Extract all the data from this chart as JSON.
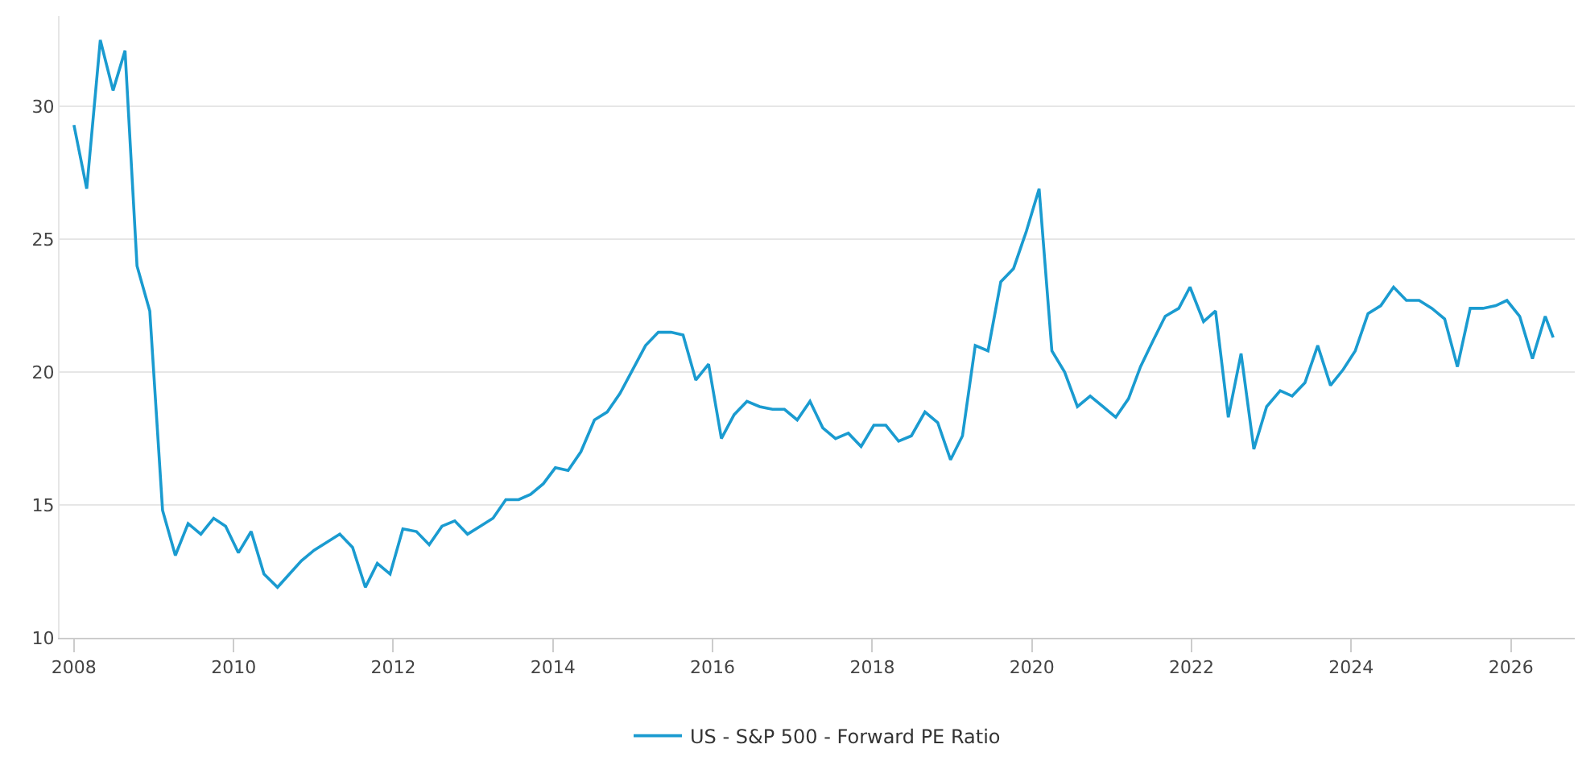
{
  "chart_data": {
    "type": "line",
    "x": [
      2008.0,
      2008.16,
      2008.33,
      2008.49,
      2008.64,
      2008.79,
      2008.95,
      2009.11,
      2009.27,
      2009.43,
      2009.59,
      2009.75,
      2009.9,
      2010.06,
      2010.22,
      2010.38,
      2010.55,
      2010.7,
      2010.85,
      2011.01,
      2011.17,
      2011.33,
      2011.49,
      2011.65,
      2011.8,
      2011.96,
      2012.12,
      2012.29,
      2012.45,
      2012.61,
      2012.77,
      2012.93,
      2013.09,
      2013.25,
      2013.41,
      2013.57,
      2013.72,
      2013.88,
      2014.03,
      2014.19,
      2014.35,
      2014.52,
      2014.68,
      2014.84,
      2015.0,
      2015.16,
      2015.32,
      2015.48,
      2015.63,
      2015.79,
      2015.95,
      2016.11,
      2016.27,
      2016.43,
      2016.59,
      2016.75,
      2016.9,
      2017.06,
      2017.22,
      2017.38,
      2017.54,
      2017.7,
      2017.86,
      2018.02,
      2018.17,
      2018.33,
      2018.49,
      2018.66,
      2018.82,
      2018.98,
      2019.13,
      2019.29,
      2019.45,
      2019.61,
      2019.77,
      2019.93,
      2020.09,
      2020.25,
      2020.41,
      2020.57,
      2020.73,
      2020.89,
      2021.05,
      2021.21,
      2021.36,
      2021.52,
      2021.67,
      2021.84,
      2021.98,
      2022.15,
      2022.3,
      2022.46,
      2022.62,
      2022.78,
      2022.94,
      2023.11,
      2023.26,
      2023.42,
      2023.58,
      2023.74,
      2023.9,
      2024.05,
      2024.21,
      2024.37,
      2024.53,
      2024.69,
      2024.85,
      2025.01,
      2025.17,
      2025.33,
      2025.49,
      2025.65,
      2025.81,
      2025.95,
      2026.11,
      2026.27,
      2026.43,
      2026.53
    ],
    "series": [
      {
        "name": "US - S&P 500 - Forward PE Ratio",
        "color": "#1a9bd0",
        "values": [
          29.3,
          26.9,
          32.5,
          30.6,
          32.1,
          24.0,
          22.3,
          14.8,
          13.1,
          14.3,
          13.9,
          14.5,
          14.2,
          13.2,
          14.0,
          12.4,
          11.9,
          12.4,
          12.9,
          13.3,
          13.6,
          13.9,
          13.4,
          11.9,
          12.8,
          12.4,
          14.1,
          14.0,
          13.5,
          14.2,
          14.4,
          13.9,
          14.2,
          14.5,
          15.2,
          15.2,
          15.4,
          15.8,
          16.4,
          16.3,
          17.0,
          18.2,
          18.5,
          19.2,
          20.1,
          21.0,
          21.5,
          21.5,
          21.4,
          19.7,
          20.3,
          17.5,
          18.4,
          18.9,
          18.7,
          18.6,
          18.6,
          18.2,
          18.9,
          17.9,
          17.5,
          17.7,
          17.2,
          18.0,
          18.0,
          17.4,
          17.6,
          18.5,
          18.1,
          16.7,
          17.6,
          21.0,
          20.8,
          23.4,
          23.9,
          25.3,
          26.9,
          20.8,
          20.0,
          18.7,
          19.1,
          18.7,
          18.3,
          19.0,
          20.2,
          21.2,
          22.1,
          22.4,
          23.2,
          21.9,
          22.3,
          18.3,
          20.7,
          17.1,
          18.7,
          19.3,
          19.1,
          19.6,
          21.0,
          19.5,
          20.1,
          20.8,
          22.2,
          22.5,
          23.2,
          22.7,
          22.7,
          22.4,
          22.0,
          20.2,
          22.4,
          22.4,
          22.5,
          22.7,
          22.1,
          20.5,
          22.1,
          21.3
        ]
      }
    ],
    "xlim": [
      2007.82,
      2026.8
    ],
    "xticks": [
      2008,
      2010,
      2012,
      2014,
      2016,
      2018,
      2020,
      2022,
      2024,
      2026
    ],
    "ylim": [
      10,
      33.4
    ],
    "yticks": [
      10,
      15,
      20,
      25,
      30
    ],
    "grid": "y",
    "legend": "bottom",
    "marker": "none",
    "line_style": "solid"
  }
}
